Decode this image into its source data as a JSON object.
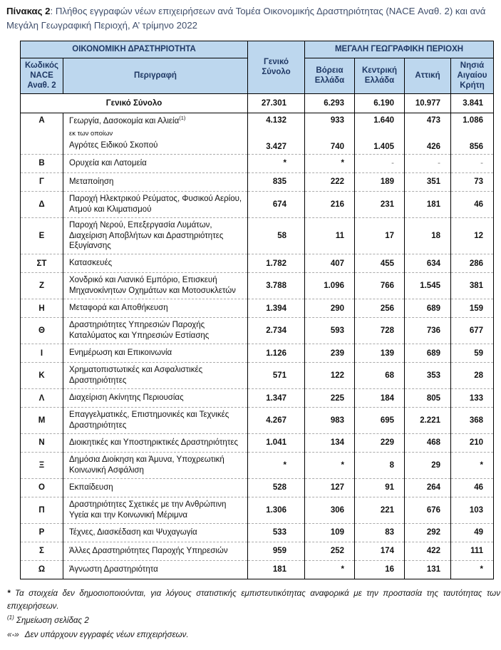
{
  "colors": {
    "header_bg": "#BDD7EE",
    "header_text": "#1F3864",
    "border": "#000000",
    "divider": "#ABABAB",
    "dash": "#7F7F7F",
    "title_text": "#3F4E6B"
  },
  "title": {
    "prefix": "Πίνακας 2",
    "rest": ": Πλήθος εγγραφών νέων επιχειρήσεων ανά Τομέα Οικονομικής Δραστηριότητας (NACE Αναθ. 2) και ανά Μεγάλη Γεωγραφική Περιοχή, Α’ τρίμηνο 2022"
  },
  "table": {
    "header": {
      "economic_activity": "ΟΙΚΟΝΟΜΙΚΗ ΔΡΑΣΤΗΡΙΟΤΗΤΑ",
      "general_total": "Γενικό Σύνολο",
      "region_group": "ΜΕΓΑΛΗ ΓΕΩΓΡΑΦΙΚΗ ΠΕΡΙΟΧΗ",
      "code": "Κωδικός NACE Αναθ. 2",
      "description": "Περιγραφή",
      "regions": [
        "Βόρεια Ελλάδα",
        "Κεντρική Ελλάδα",
        "Αττική",
        "Νησιά Αιγαίου Κρήτη"
      ]
    },
    "total_row": {
      "label": "Γενικό Σύνολο",
      "values": [
        "27.301",
        "6.293",
        "6.190",
        "10.977",
        "3.841"
      ]
    },
    "rows": [
      {
        "code": "Α",
        "desc": "Γεωργία, Δασοκομία και Αλιεία",
        "desc_sup": "(1)",
        "sub_note": "εκ των οποίων",
        "sub_desc": "Αγρότες Ειδικού Σκοπού",
        "values": [
          "4.132",
          "933",
          "1.640",
          "473",
          "1.086"
        ],
        "sub_values": [
          "3.427",
          "740",
          "1.405",
          "426",
          "856"
        ]
      },
      {
        "code": "Β",
        "desc": "Ορυχεία και Λατομεία",
        "values": [
          "*",
          "*",
          "-",
          "-",
          "-"
        ]
      },
      {
        "code": "Γ",
        "desc": "Μεταποίηση",
        "values": [
          "835",
          "222",
          "189",
          "351",
          "73"
        ]
      },
      {
        "code": "Δ",
        "desc": "Παροχή Ηλεκτρικού Ρεύματος, Φυσικού Αερίου, Ατμού και Κλιματισμού",
        "values": [
          "674",
          "216",
          "231",
          "181",
          "46"
        ]
      },
      {
        "code": "Ε",
        "desc": "Παροχή Νερού, Επεξεργασία Λυμάτων, Διαχείριση Αποβλήτων και Δραστηριότητες Εξυγίανσης",
        "values": [
          "58",
          "11",
          "17",
          "18",
          "12"
        ]
      },
      {
        "code": "ΣΤ",
        "desc": "Κατασκευές",
        "values": [
          "1.782",
          "407",
          "455",
          "634",
          "286"
        ]
      },
      {
        "code": "Ζ",
        "desc": "Χονδρικό και Λιανικό Εμπόριο, Επισκευή Μηχανοκίνητων Οχημάτων και Μοτοσυκλετών",
        "values": [
          "3.788",
          "1.096",
          "766",
          "1.545",
          "381"
        ]
      },
      {
        "code": "Η",
        "desc": "Μεταφορά και Αποθήκευση",
        "values": [
          "1.394",
          "290",
          "256",
          "689",
          "159"
        ]
      },
      {
        "code": "Θ",
        "desc": "Δραστηριότητες Υπηρεσιών Παροχής Καταλύματος και Υπηρεσιών Εστίασης",
        "values": [
          "2.734",
          "593",
          "728",
          "736",
          "677"
        ]
      },
      {
        "code": "Ι",
        "desc": "Ενημέρωση και Επικοινωνία",
        "values": [
          "1.126",
          "239",
          "139",
          "689",
          "59"
        ]
      },
      {
        "code": "Κ",
        "desc": "Χρηματοπιστωτικές και Ασφαλιστικές Δραστηριότητες",
        "values": [
          "571",
          "122",
          "68",
          "353",
          "28"
        ]
      },
      {
        "code": "Λ",
        "desc": "Διαχείριση Ακίνητης Περιουσίας",
        "values": [
          "1.347",
          "225",
          "184",
          "805",
          "133"
        ]
      },
      {
        "code": "Μ",
        "desc": "Επαγγελματικές, Επιστημονικές και Τεχνικές Δραστηριότητες",
        "values": [
          "4.267",
          "983",
          "695",
          "2.221",
          "368"
        ]
      },
      {
        "code": "Ν",
        "desc": "Διοικητικές και Υποστηρικτικές Δραστηριότητες",
        "values": [
          "1.041",
          "134",
          "229",
          "468",
          "210"
        ]
      },
      {
        "code": "Ξ",
        "desc": "Δημόσια Διοίκηση και Άμυνα, Υποχρεωτική Κοινωνική Ασφάλιση",
        "values": [
          "*",
          "*",
          "8",
          "29",
          "*"
        ]
      },
      {
        "code": "Ο",
        "desc": "Εκπαίδευση",
        "values": [
          "528",
          "127",
          "91",
          "264",
          "46"
        ]
      },
      {
        "code": "Π",
        "desc": "Δραστηριότητες Σχετικές με την Ανθρώπινη Υγεία και την Κοινωνική Μέριμνα",
        "values": [
          "1.306",
          "306",
          "221",
          "676",
          "103"
        ]
      },
      {
        "code": "Ρ",
        "desc": "Τέχνες, Διασκέδαση και Ψυχαγωγία",
        "values": [
          "533",
          "109",
          "83",
          "292",
          "49"
        ]
      },
      {
        "code": "Σ",
        "desc": "Άλλες Δραστηριότητες Παροχής Υπηρεσιών",
        "values": [
          "959",
          "252",
          "174",
          "422",
          "111"
        ]
      },
      {
        "code": "Ω",
        "desc": "Άγνωστη Δραστηριότητα",
        "values": [
          "181",
          "*",
          "16",
          "131",
          "*"
        ]
      }
    ]
  },
  "footnotes": [
    {
      "marker": "*",
      "text": "Τα στοιχεία δεν δημοσιοποιούνται, για λόγους στατιστικής εμπιστευτικότητας αναφορικά με την προστασία της ταυτότητας των επιχειρήσεων."
    },
    {
      "marker": "(1)",
      "text": "Σημείωση σελίδας 2"
    },
    {
      "marker": "«-»",
      "text": "Δεν υπάρχουν εγγραφές νέων επιχειρήσεων."
    }
  ]
}
